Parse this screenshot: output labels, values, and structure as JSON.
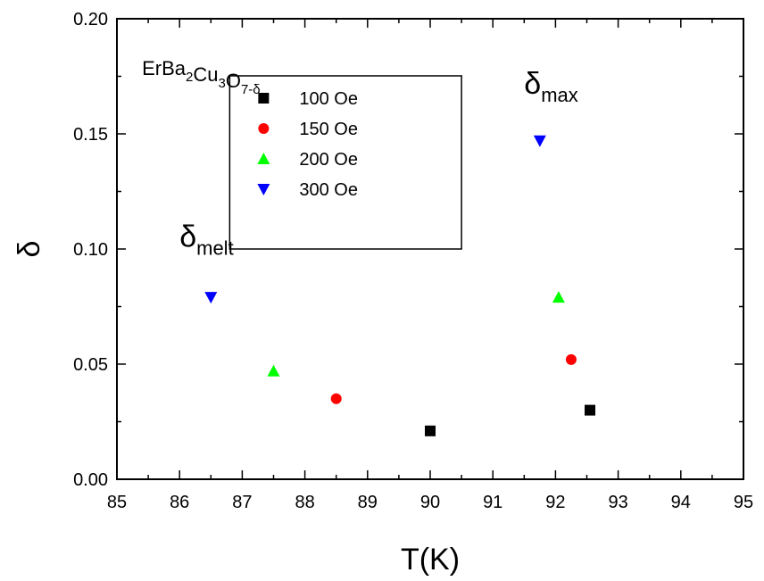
{
  "chart_data": {
    "type": "scatter",
    "title": "",
    "xlabel": "T(K)",
    "ylabel": "δ",
    "xlim": [
      85,
      95
    ],
    "ylim": [
      0.0,
      0.2
    ],
    "x_ticks": [
      "85",
      "86",
      "87",
      "88",
      "89",
      "90",
      "91",
      "92",
      "93",
      "94",
      "95"
    ],
    "y_ticks": [
      "0.00",
      "0.05",
      "0.10",
      "0.15",
      "0.20"
    ],
    "grid": false,
    "legend_position": "top-center",
    "compound_label": {
      "base": "ErBa",
      "sub1": "2",
      "mid": "Cu",
      "sub2": "3",
      "mid2": "O",
      "sub3": "7-δ"
    },
    "annotations": [
      {
        "symbol": "δ",
        "subscript": "melt"
      },
      {
        "symbol": "δ",
        "subscript": "max"
      }
    ],
    "series": [
      {
        "name": "100 Oe",
        "marker": "square",
        "color": "#000000",
        "points": [
          {
            "x": 90.0,
            "y": 0.021
          },
          {
            "x": 92.55,
            "y": 0.03
          }
        ]
      },
      {
        "name": "150 Oe",
        "marker": "circle",
        "color": "#ff0000",
        "points": [
          {
            "x": 88.5,
            "y": 0.035
          },
          {
            "x": 92.25,
            "y": 0.052
          }
        ]
      },
      {
        "name": "200 Oe",
        "marker": "triangle-up",
        "color": "#00ff00",
        "points": [
          {
            "x": 87.5,
            "y": 0.047
          },
          {
            "x": 92.05,
            "y": 0.079
          }
        ]
      },
      {
        "name": "300 Oe",
        "marker": "triangle-down",
        "color": "#0000ff",
        "points": [
          {
            "x": 86.5,
            "y": 0.079
          },
          {
            "x": 91.75,
            "y": 0.147
          }
        ]
      }
    ]
  }
}
